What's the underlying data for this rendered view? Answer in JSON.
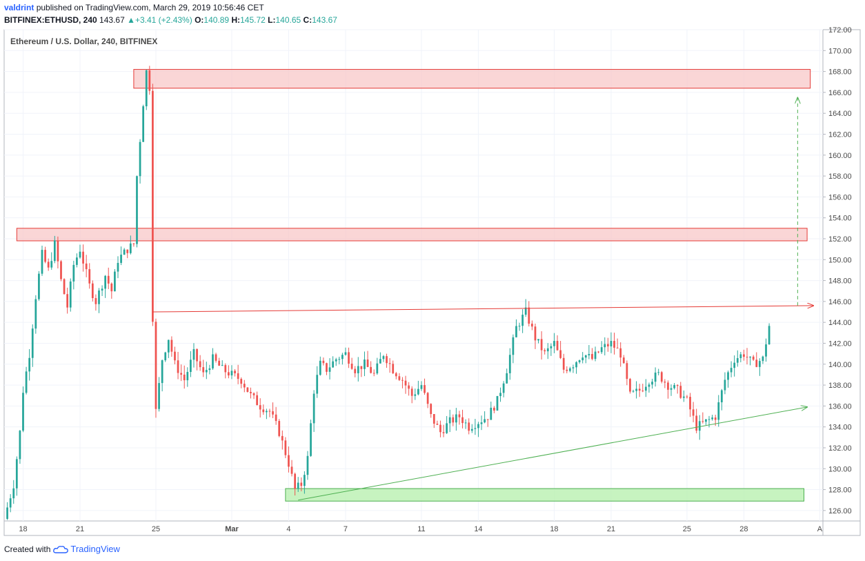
{
  "header": {
    "author": "valdrint",
    "published_text": "published on TradingView.com, March 29, 2019 10:56:46 CET",
    "symbol": "BITFINEX:ETHUSD, 240",
    "last": "143.67",
    "change": "+3.41 (+2.43%)",
    "open_label": "O:",
    "open": "140.89",
    "high_label": "H:",
    "high": "145.72",
    "low_label": "L:",
    "low": "140.65",
    "close_label": "C:",
    "close": "143.67"
  },
  "footer": {
    "created_with": "Created with",
    "brand": "TradingView"
  },
  "colors": {
    "up": "#26a69a",
    "down": "#ef5350",
    "resistance_zone": "#f8c8c8",
    "support_zone": "#b9f0b0",
    "trend_red": "#e53935",
    "trend_green": "#4caf50"
  },
  "chart_data": {
    "type": "candlestick",
    "title": "Ethereum / U.S. Dollar, 240, BITFINEX",
    "ylim": [
      125,
      172
    ],
    "y_ticks": [
      "126.00",
      "128.00",
      "130.00",
      "132.00",
      "134.00",
      "136.00",
      "138.00",
      "140.00",
      "142.00",
      "144.00",
      "146.00",
      "148.00",
      "150.00",
      "152.00",
      "154.00",
      "156.00",
      "158.00",
      "160.00",
      "162.00",
      "164.00",
      "166.00",
      "168.00",
      "170.00",
      "172.00"
    ],
    "x_tick_labels": [
      "18",
      "21",
      "25",
      "Mar",
      "4",
      "7",
      "11",
      "14",
      "18",
      "21",
      "25",
      "28",
      "A"
    ],
    "x_tick_dates": [
      "2019-02-18",
      "2019-02-21",
      "2019-02-25",
      "2019-03-01",
      "2019-03-04",
      "2019-03-07",
      "2019-03-11",
      "2019-03-14",
      "2019-03-18",
      "2019-03-21",
      "2019-03-25",
      "2019-03-28",
      "2019-04-01"
    ],
    "x_range": [
      "2019-02-17T00:00",
      "2019-04-01T04:00"
    ],
    "candle_interval": "4h",
    "price_path": [
      [
        "2019-02-17T00:00",
        125.2
      ],
      [
        "2019-02-17T12:00",
        128.5
      ],
      [
        "2019-02-17T20:00",
        133.5
      ],
      [
        "2019-02-18T00:00",
        137.5
      ],
      [
        "2019-02-18T08:00",
        141.0
      ],
      [
        "2019-02-18T16:00",
        146.5
      ],
      [
        "2019-02-19T00:00",
        150.5
      ],
      [
        "2019-02-19T08:00",
        149.0
      ],
      [
        "2019-02-19T16:00",
        151.5
      ],
      [
        "2019-02-20T00:00",
        148.0
      ],
      [
        "2019-02-20T08:00",
        145.5
      ],
      [
        "2019-02-20T16:00",
        149.5
      ],
      [
        "2019-02-21T00:00",
        151.0
      ],
      [
        "2019-02-21T12:00",
        147.5
      ],
      [
        "2019-02-21T20:00",
        146.0
      ],
      [
        "2019-02-22T08:00",
        148.5
      ],
      [
        "2019-02-22T16:00",
        147.0
      ],
      [
        "2019-02-23T00:00",
        150.0
      ],
      [
        "2019-02-23T12:00",
        151.0
      ],
      [
        "2019-02-23T20:00",
        151.5
      ],
      [
        "2019-02-24T00:00",
        158.0
      ],
      [
        "2019-02-24T08:00",
        165.0
      ],
      [
        "2019-02-24T12:00",
        168.0
      ],
      [
        "2019-02-24T16:00",
        166.5
      ],
      [
        "2019-02-24T20:00",
        144.5
      ],
      [
        "2019-02-25T00:00",
        135.5
      ],
      [
        "2019-02-25T08:00",
        140.5
      ],
      [
        "2019-02-25T16:00",
        142.5
      ],
      [
        "2019-02-26T00:00",
        140.0
      ],
      [
        "2019-02-26T12:00",
        138.5
      ],
      [
        "2019-02-27T00:00",
        141.0
      ],
      [
        "2019-02-27T12:00",
        139.0
      ],
      [
        "2019-02-28T00:00",
        140.5
      ],
      [
        "2019-02-28T12:00",
        139.5
      ],
      [
        "2019-03-01T00:00",
        139.0
      ],
      [
        "2019-03-01T12:00",
        138.5
      ],
      [
        "2019-03-02T00:00",
        137.0
      ],
      [
        "2019-03-02T12:00",
        136.0
      ],
      [
        "2019-03-03T00:00",
        135.5
      ],
      [
        "2019-03-03T12:00",
        133.5
      ],
      [
        "2019-03-04T00:00",
        130.5
      ],
      [
        "2019-03-04T08:00",
        128.0
      ],
      [
        "2019-03-04T16:00",
        128.5
      ],
      [
        "2019-03-05T00:00",
        131.0
      ],
      [
        "2019-03-05T08:00",
        137.5
      ],
      [
        "2019-03-05T16:00",
        140.0
      ],
      [
        "2019-03-06T00:00",
        139.5
      ],
      [
        "2019-03-06T12:00",
        140.5
      ],
      [
        "2019-03-07T00:00",
        141.0
      ],
      [
        "2019-03-07T12:00",
        139.5
      ],
      [
        "2019-03-08T00:00",
        140.0
      ],
      [
        "2019-03-08T12:00",
        139.0
      ],
      [
        "2019-03-09T00:00",
        141.0
      ],
      [
        "2019-03-09T12:00",
        139.5
      ],
      [
        "2019-03-10T00:00",
        138.5
      ],
      [
        "2019-03-10T12:00",
        137.0
      ],
      [
        "2019-03-11T00:00",
        138.0
      ],
      [
        "2019-03-11T12:00",
        135.0
      ],
      [
        "2019-03-12T00:00",
        133.5
      ],
      [
        "2019-03-12T12:00",
        134.5
      ],
      [
        "2019-03-13T00:00",
        135.0
      ],
      [
        "2019-03-13T12:00",
        134.0
      ],
      [
        "2019-03-14T00:00",
        134.5
      ],
      [
        "2019-03-14T12:00",
        135.0
      ],
      [
        "2019-03-15T00:00",
        136.5
      ],
      [
        "2019-03-15T12:00",
        139.5
      ],
      [
        "2019-03-16T00:00",
        143.5
      ],
      [
        "2019-03-16T12:00",
        145.0
      ],
      [
        "2019-03-17T00:00",
        142.5
      ],
      [
        "2019-03-17T12:00",
        141.0
      ],
      [
        "2019-03-18T00:00",
        142.0
      ],
      [
        "2019-03-18T12:00",
        139.5
      ],
      [
        "2019-03-19T00:00",
        140.0
      ],
      [
        "2019-03-19T12:00",
        141.0
      ],
      [
        "2019-03-20T00:00",
        140.5
      ],
      [
        "2019-03-20T12:00",
        141.5
      ],
      [
        "2019-03-21T00:00",
        142.0
      ],
      [
        "2019-03-21T12:00",
        141.0
      ],
      [
        "2019-03-22T00:00",
        137.0
      ],
      [
        "2019-03-22T12:00",
        137.5
      ],
      [
        "2019-03-23T00:00",
        138.5
      ],
      [
        "2019-03-23T12:00",
        139.0
      ],
      [
        "2019-03-24T00:00",
        138.0
      ],
      [
        "2019-03-24T12:00",
        137.5
      ],
      [
        "2019-03-25T00:00",
        136.5
      ],
      [
        "2019-03-25T12:00",
        134.0
      ],
      [
        "2019-03-26T00:00",
        134.5
      ],
      [
        "2019-03-26T12:00",
        135.0
      ],
      [
        "2019-03-27T00:00",
        138.5
      ],
      [
        "2019-03-27T12:00",
        140.5
      ],
      [
        "2019-03-28T00:00",
        141.0
      ],
      [
        "2019-03-28T12:00",
        140.0
      ],
      [
        "2019-03-29T00:00",
        140.5
      ],
      [
        "2019-03-29T08:00",
        143.67
      ]
    ],
    "annotations": {
      "resistance_zones": [
        {
          "from": "2019-02-23T20:00",
          "to": "2019-03-31T12:00",
          "low": 166.4,
          "high": 168.2
        },
        {
          "from": "2019-02-17T16:00",
          "to": "2019-03-31T08:00",
          "low": 151.8,
          "high": 153.0
        }
      ],
      "support_zone": {
        "from": "2019-03-03T20:00",
        "to": "2019-03-31T04:00",
        "low": 126.9,
        "high": 128.1
      },
      "resistance_line": {
        "from": [
          "2019-02-24T20:00",
          145.0
        ],
        "to": [
          "2019-03-31T16:00",
          145.6
        ]
      },
      "ascending_support_line": {
        "from": [
          "2019-03-04T12:00",
          127.0
        ],
        "to": [
          "2019-03-31T08:00",
          135.9
        ]
      },
      "projection_arrow": {
        "at": "2019-03-30T20:00",
        "from": 145.6,
        "to": 165.5
      }
    }
  }
}
